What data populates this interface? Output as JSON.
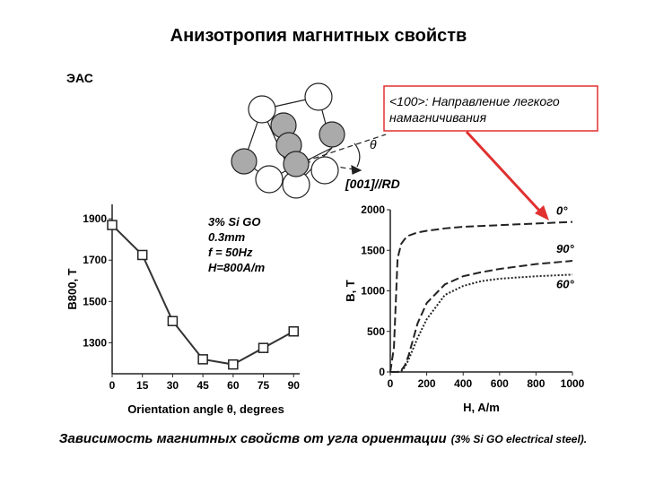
{
  "title": "Анизотропия магнитных свойств",
  "section_label": "ЭАС",
  "callout": [
    "<100>: Направление легкого",
    "намагничивания"
  ],
  "diagram": {
    "angle_symbol": "θ",
    "direction": "[001]//RD"
  },
  "caption": {
    "main": "Зависимость магнитных свойств от угла ориентации",
    "note": "(3% Si GO electrical steel)."
  },
  "chart_data": [
    {
      "type": "line",
      "marker": "square",
      "color": "#333333",
      "x": [
        0,
        15,
        30,
        45,
        60,
        75,
        90
      ],
      "values": [
        1870,
        1725,
        1405,
        1220,
        1195,
        1275,
        1355
      ],
      "xlim": [
        0,
        93
      ],
      "ylim": [
        1150,
        1970
      ],
      "xticks": [
        0,
        15,
        30,
        45,
        60,
        75,
        90
      ],
      "yticks": [
        1300,
        1500,
        1700,
        1900
      ],
      "xlabel": "Orientation angle θ, degrees",
      "ylabel": "B800, T",
      "annotations": [
        "3% Si GO",
        "0.3mm",
        "f = 50Hz",
        "H=800A/m"
      ]
    },
    {
      "type": "line",
      "color": "#222222",
      "x": [
        0,
        20,
        40,
        60,
        80,
        100,
        150,
        200,
        300,
        400,
        500,
        600,
        800,
        1000
      ],
      "series": [
        {
          "name": "0°",
          "dash": "9,4",
          "values": [
            0,
            300,
            1400,
            1580,
            1640,
            1680,
            1720,
            1740,
            1770,
            1790,
            1800,
            1810,
            1830,
            1850
          ]
        },
        {
          "name": "90°",
          "dash": "9,4",
          "values": [
            0,
            0,
            0,
            20,
            80,
            200,
            600,
            850,
            1080,
            1180,
            1230,
            1270,
            1330,
            1370
          ]
        },
        {
          "name": "60°",
          "dash": "2,2",
          "values": [
            0,
            0,
            0,
            10,
            60,
            150,
            420,
            650,
            950,
            1060,
            1120,
            1150,
            1180,
            1200
          ]
        }
      ],
      "xlim": [
        0,
        1000
      ],
      "ylim": [
        0,
        2000
      ],
      "xticks": [
        0,
        200,
        400,
        600,
        800,
        1000
      ],
      "yticks": [
        0,
        500,
        1000,
        1500,
        2000
      ],
      "xlabel": "H, A/m",
      "ylabel": "B, T"
    }
  ]
}
